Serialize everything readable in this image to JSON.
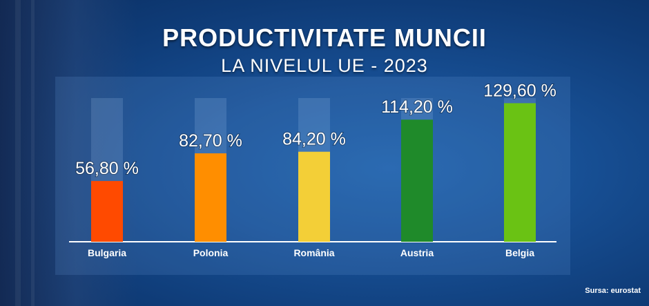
{
  "chart_data": {
    "type": "bar",
    "title": "PRODUCTIVITATE MUNCII",
    "subtitle": "LA NIVELUL UE - 2023",
    "categories": [
      "Bulgaria",
      "Polonia",
      "România",
      "Austria",
      "Belgia"
    ],
    "values": [
      56.8,
      82.7,
      84.2,
      114.2,
      129.6
    ],
    "value_labels": [
      "56,80 %",
      "82,70 %",
      "84,20 %",
      "114,20 %",
      "129,60 %"
    ],
    "colors": [
      "#ff4a00",
      "#ff8e00",
      "#f3cf37",
      "#1f8a2a",
      "#6ac214"
    ],
    "ylim": [
      0,
      140
    ],
    "grid": false,
    "legend": "none"
  },
  "source": "Sursa: eurostat"
}
